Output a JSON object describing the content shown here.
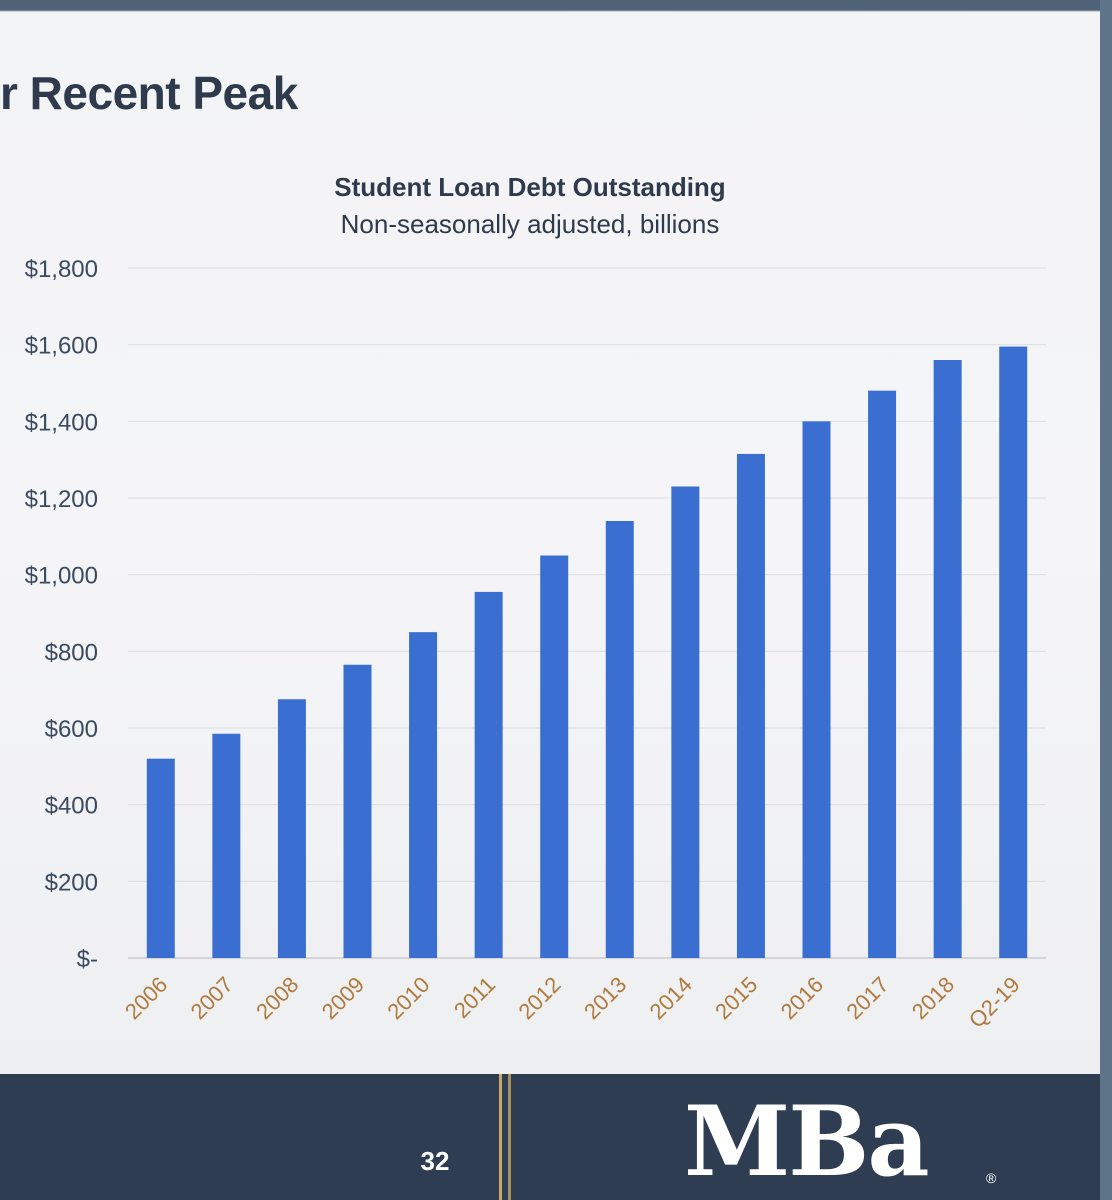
{
  "slide": {
    "title": "r Recent Peak",
    "page_number": "32",
    "logo_text": "MBa",
    "logo_mark": "®"
  },
  "colors": {
    "bar": "#3a6fd1",
    "grid": "#dcdee2",
    "axis_text": "#3a4a60",
    "title_text": "#2f3b4d",
    "footer": "#2e3d52",
    "accent_gold": "#c9a86a"
  },
  "chart_data": {
    "type": "bar",
    "title": "Student Loan Debt Outstanding",
    "subtitle": "Non-seasonally adjusted, billions",
    "categories": [
      "2006",
      "2007",
      "2008",
      "2009",
      "2010",
      "2011",
      "2012",
      "2013",
      "2014",
      "2015",
      "2016",
      "2017",
      "2018",
      "Q2-19"
    ],
    "values": [
      520,
      585,
      675,
      765,
      850,
      955,
      1050,
      1140,
      1230,
      1315,
      1400,
      1480,
      1560,
      1595
    ],
    "ylim": [
      0,
      1800
    ],
    "yticks": [
      0,
      200,
      400,
      600,
      800,
      1000,
      1200,
      1400,
      1600,
      1800
    ],
    "ytick_labels": [
      "$-",
      "$200",
      "$400",
      "$600",
      "$800",
      "$1,000",
      "$1,200",
      "$1,400",
      "$1,600",
      "$1,800"
    ],
    "grid": true,
    "legend": "none"
  }
}
